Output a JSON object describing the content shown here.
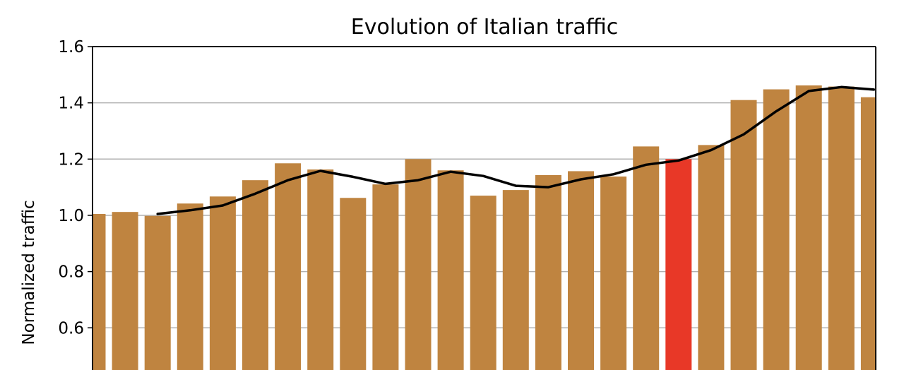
{
  "chart_data": {
    "type": "bar",
    "title": "Evolution of Italian traffic",
    "ylabel": "Normalized traffic",
    "xlabel": "",
    "ylim": [
      0.45,
      1.6
    ],
    "yticks": [
      "0.6",
      "0.8",
      "1.0",
      "1.2",
      "1.4",
      "1.6"
    ],
    "grid": "horizontal",
    "bar_color": "#bf8440",
    "highlight_color": "#e83827",
    "highlight_index": 18,
    "values": [
      1.005,
      1.012,
      0.998,
      1.042,
      1.067,
      1.125,
      1.185,
      1.163,
      1.062,
      1.11,
      1.2,
      1.16,
      1.07,
      1.09,
      1.143,
      1.157,
      1.138,
      1.245,
      1.2,
      1.25,
      1.41,
      1.448,
      1.462,
      1.458,
      1.42
    ],
    "series": [
      {
        "type": "line",
        "color": "#000000",
        "start_index": 2,
        "values": [
          1.005,
          1.018,
          1.035,
          1.077,
          1.125,
          1.158,
          1.137,
          1.112,
          1.125,
          1.155,
          1.14,
          1.105,
          1.1,
          1.128,
          1.146,
          1.18,
          1.195,
          1.232,
          1.288,
          1.37,
          1.442,
          1.456,
          1.447
        ]
      }
    ]
  }
}
